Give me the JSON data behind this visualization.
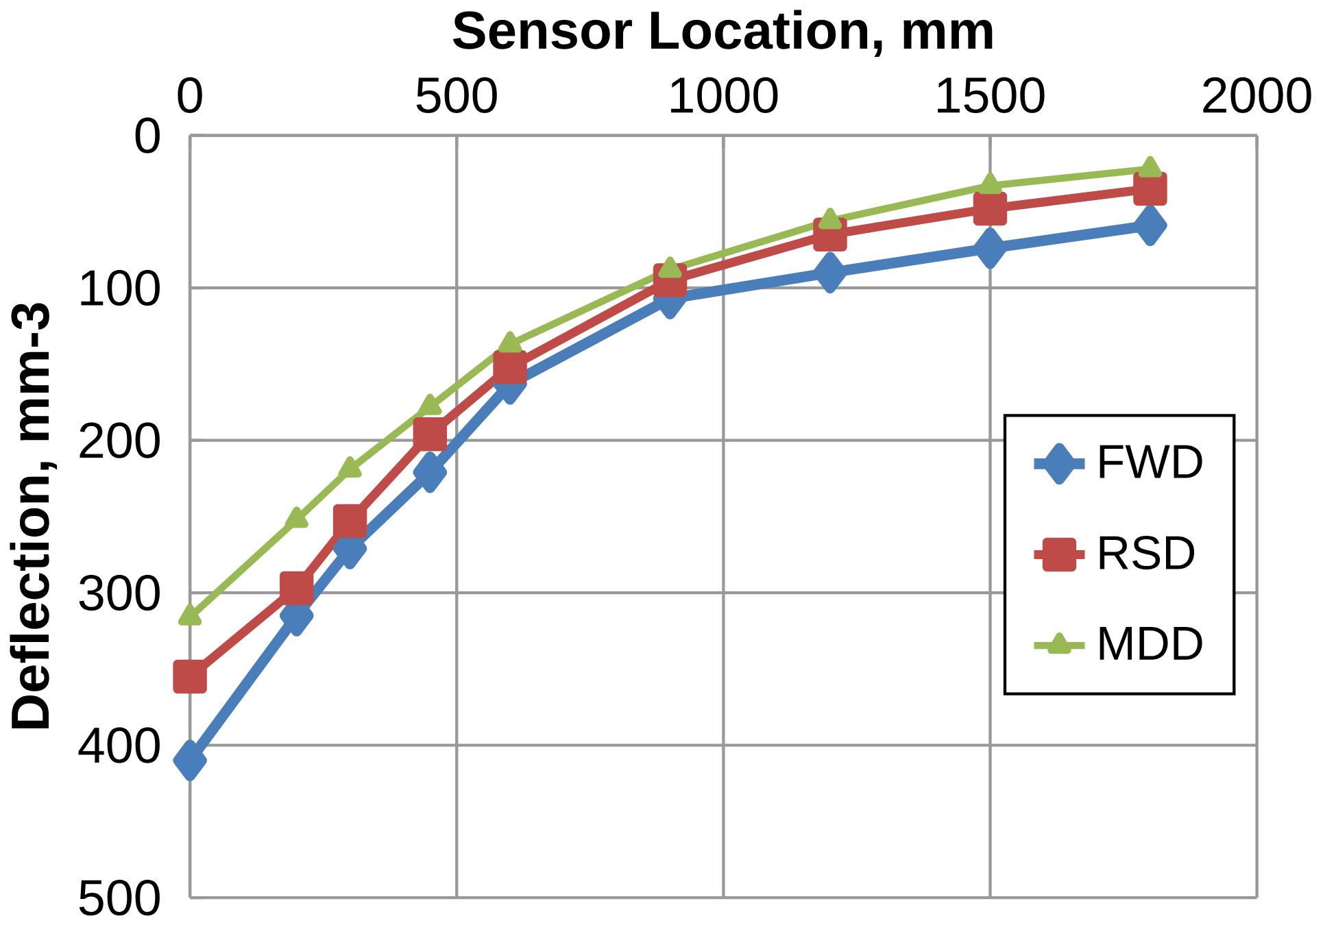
{
  "chart_data": {
    "type": "line",
    "xlabel": "Sensor Location, mm",
    "ylabel": "Deflection, mm-3",
    "x": [
      0,
      200,
      300,
      450,
      600,
      900,
      1200,
      1500,
      1800
    ],
    "series": [
      {
        "name": "FWD",
        "color": "#4a7ebb",
        "marker": "diamond",
        "values": [
          410,
          315,
          271,
          221,
          163,
          107,
          90,
          74,
          59
        ]
      },
      {
        "name": "RSD",
        "color": "#be4b48",
        "marker": "square",
        "values": [
          355,
          297,
          253,
          196,
          152,
          95,
          65,
          48,
          35
        ]
      },
      {
        "name": "MDD",
        "color": "#98b954",
        "marker": "triangle",
        "values": [
          316,
          252,
          219,
          178,
          137,
          88,
          56,
          33,
          22
        ]
      }
    ],
    "xlim": [
      0,
      2000
    ],
    "ylim": [
      500,
      0
    ],
    "xticks": [
      0,
      500,
      1000,
      1500,
      2000
    ],
    "yticks": [
      0,
      100,
      200,
      300,
      400,
      500
    ],
    "grid": true,
    "legend": "right",
    "line_style": "solid"
  }
}
